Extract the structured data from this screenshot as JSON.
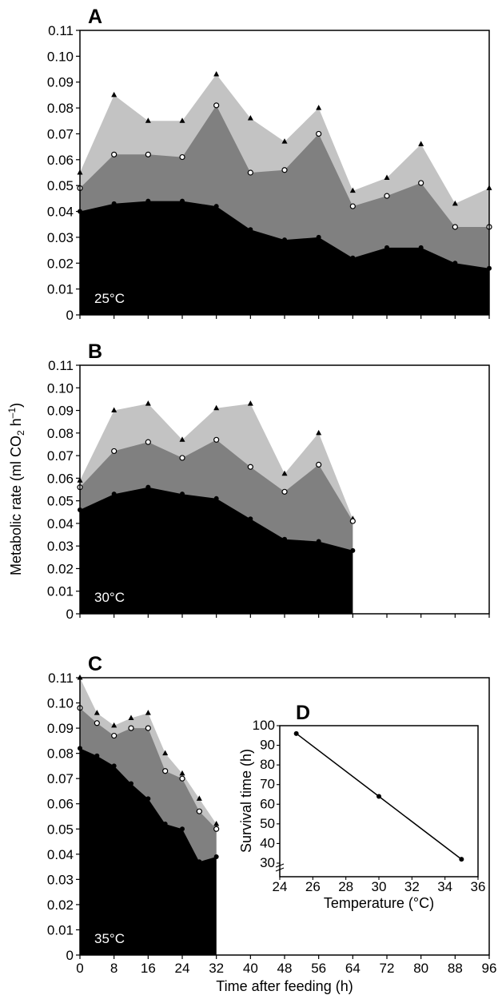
{
  "chart_data": [
    {
      "panel": "A",
      "type": "area",
      "temperature_label": "25°C",
      "ylim": [
        0,
        0.11
      ],
      "yticks": [
        "0",
        "0.01",
        "0.02",
        "0.03",
        "0.04",
        "0.05",
        "0.06",
        "0.07",
        "0.08",
        "0.09",
        "0.10",
        "0.11"
      ],
      "xlim": [
        0,
        96
      ],
      "x": [
        0,
        8,
        16,
        24,
        32,
        40,
        48,
        56,
        64,
        72,
        80,
        88,
        96
      ],
      "series": [
        {
          "marker": "triangle",
          "fill": "#c3c3c3",
          "values": [
            0.055,
            0.085,
            0.075,
            0.075,
            0.093,
            0.076,
            0.067,
            0.08,
            0.048,
            0.053,
            0.066,
            0.043,
            0.049
          ]
        },
        {
          "marker": "open-circle",
          "fill": "#808080",
          "values": [
            0.049,
            0.062,
            0.062,
            0.061,
            0.081,
            0.055,
            0.056,
            0.07,
            0.042,
            0.046,
            0.051,
            0.034,
            0.034
          ]
        },
        {
          "marker": "filled-circle",
          "fill": "#000000",
          "values": [
            0.04,
            0.043,
            0.044,
            0.044,
            0.042,
            0.033,
            0.029,
            0.03,
            0.022,
            0.026,
            0.026,
            0.02,
            0.018
          ]
        }
      ]
    },
    {
      "panel": "B",
      "type": "area",
      "temperature_label": "30°C",
      "ylim": [
        0,
        0.11
      ],
      "yticks": [
        "0",
        "0.01",
        "0.02",
        "0.03",
        "0.04",
        "0.05",
        "0.06",
        "0.07",
        "0.08",
        "0.09",
        "0.10",
        "0.11"
      ],
      "xlim": [
        0,
        96
      ],
      "x": [
        0,
        8,
        16,
        24,
        32,
        40,
        48,
        56,
        64
      ],
      "series": [
        {
          "marker": "triangle",
          "fill": "#c3c3c3",
          "values": [
            0.059,
            0.09,
            0.093,
            0.077,
            0.091,
            0.093,
            0.062,
            0.08,
            0.042
          ]
        },
        {
          "marker": "open-circle",
          "fill": "#808080",
          "values": [
            0.056,
            0.072,
            0.076,
            0.069,
            0.077,
            0.065,
            0.054,
            0.066,
            0.041
          ]
        },
        {
          "marker": "filled-circle",
          "fill": "#000000",
          "values": [
            0.046,
            0.053,
            0.056,
            0.053,
            0.051,
            0.042,
            0.033,
            0.032,
            0.028
          ]
        }
      ]
    },
    {
      "panel": "C",
      "type": "area",
      "temperature_label": "35°C",
      "ylim": [
        0,
        0.11
      ],
      "yticks": [
        "0",
        "0.01",
        "0.02",
        "0.03",
        "0.04",
        "0.05",
        "0.06",
        "0.07",
        "0.08",
        "0.09",
        "0.10",
        "0.11"
      ],
      "xlim": [
        0,
        96
      ],
      "xticks": [
        "0",
        "8",
        "16",
        "24",
        "32",
        "40",
        "48",
        "56",
        "64",
        "72",
        "80",
        "88",
        "96"
      ],
      "xlabel": "Time after feeding (h)",
      "x": [
        0,
        4,
        8,
        12,
        16,
        20,
        24,
        28,
        32
      ],
      "series": [
        {
          "marker": "triangle",
          "fill": "#c3c3c3",
          "values": [
            0.11,
            0.096,
            0.091,
            0.094,
            0.096,
            0.08,
            0.072,
            0.062,
            0.052
          ]
        },
        {
          "marker": "open-circle",
          "fill": "#808080",
          "values": [
            0.098,
            0.092,
            0.087,
            0.09,
            0.09,
            0.073,
            0.07,
            0.057,
            0.05
          ]
        },
        {
          "marker": "filled-circle",
          "fill": "#000000",
          "values": [
            0.082,
            0.079,
            0.075,
            0.068,
            0.062,
            0.052,
            0.05,
            0.037,
            0.039
          ]
        }
      ]
    },
    {
      "panel": "D",
      "type": "line",
      "x": [
        25,
        30,
        35
      ],
      "values": [
        96,
        64,
        32
      ],
      "xlim": [
        24,
        36
      ],
      "ylim": [
        30,
        100
      ],
      "xticks": [
        "24",
        "26",
        "28",
        "30",
        "32",
        "34",
        "36"
      ],
      "yticks": [
        "30",
        "40",
        "50",
        "60",
        "70",
        "80",
        "90",
        "100"
      ],
      "xlabel": "Temperature (°C)",
      "ylabel": "Survival time (h)",
      "y_axis_break": true
    }
  ],
  "shared_ylabel_main": "Metabolic rate (ml CO",
  "shared_ylabel_sub": "2",
  "shared_ylabel_unit": " h",
  "shared_ylabel_sup": "–1",
  "shared_ylabel_close": ")"
}
